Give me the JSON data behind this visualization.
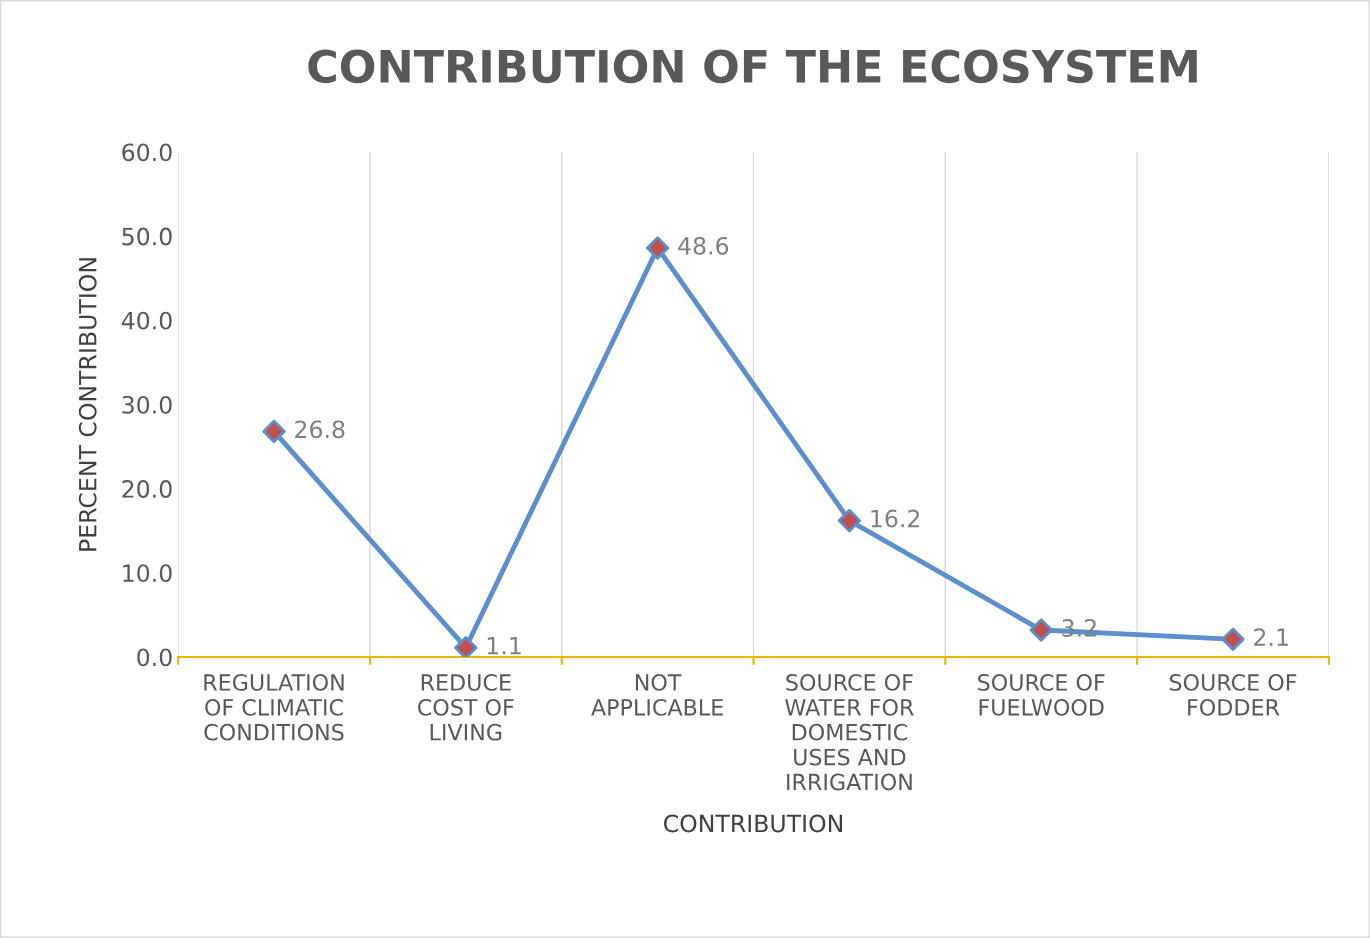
{
  "chart_data": {
    "type": "line",
    "title": "CONTRIBUTION OF THE ECOSYSTEM",
    "xlabel": "CONTRIBUTION",
    "ylabel": "PERCENT CONTRIBUTION",
    "categories": [
      "REGULATION\nOF CLIMATIC\nCONDITIONS",
      "REDUCE\nCOST OF\nLIVING",
      "NOT\nAPPLICABLE",
      "SOURCE OF\nWATER FOR\nDOMESTIC\nUSES AND\nIRRIGATION",
      "SOURCE OF\nFUELWOOD",
      "SOURCE OF\nFODDER"
    ],
    "series": [
      {
        "color": "#5b8fd0",
        "colors": [
          "#c0504d",
          "#c0504d",
          "#c0504d",
          "#c0504d",
          "#c0504d",
          "#c0504d"
        ],
        "values": [
          26.8,
          1.1,
          48.6,
          16.2,
          3.2,
          2.1
        ]
      }
    ],
    "ylim": [
      0,
      60
    ],
    "yticks": [
      {
        "value": 0,
        "label": "0.0"
      },
      {
        "value": 10,
        "label": "10.0"
      },
      {
        "value": 20,
        "label": "20.0"
      },
      {
        "value": 30,
        "label": "30.0"
      },
      {
        "value": 40,
        "label": "40.0"
      },
      {
        "value": 50,
        "label": "50.0"
      },
      {
        "value": 60,
        "label": "60.0"
      }
    ],
    "grid": "x",
    "marker": "diamond",
    "line_style": "solid",
    "data_labels": true
  }
}
